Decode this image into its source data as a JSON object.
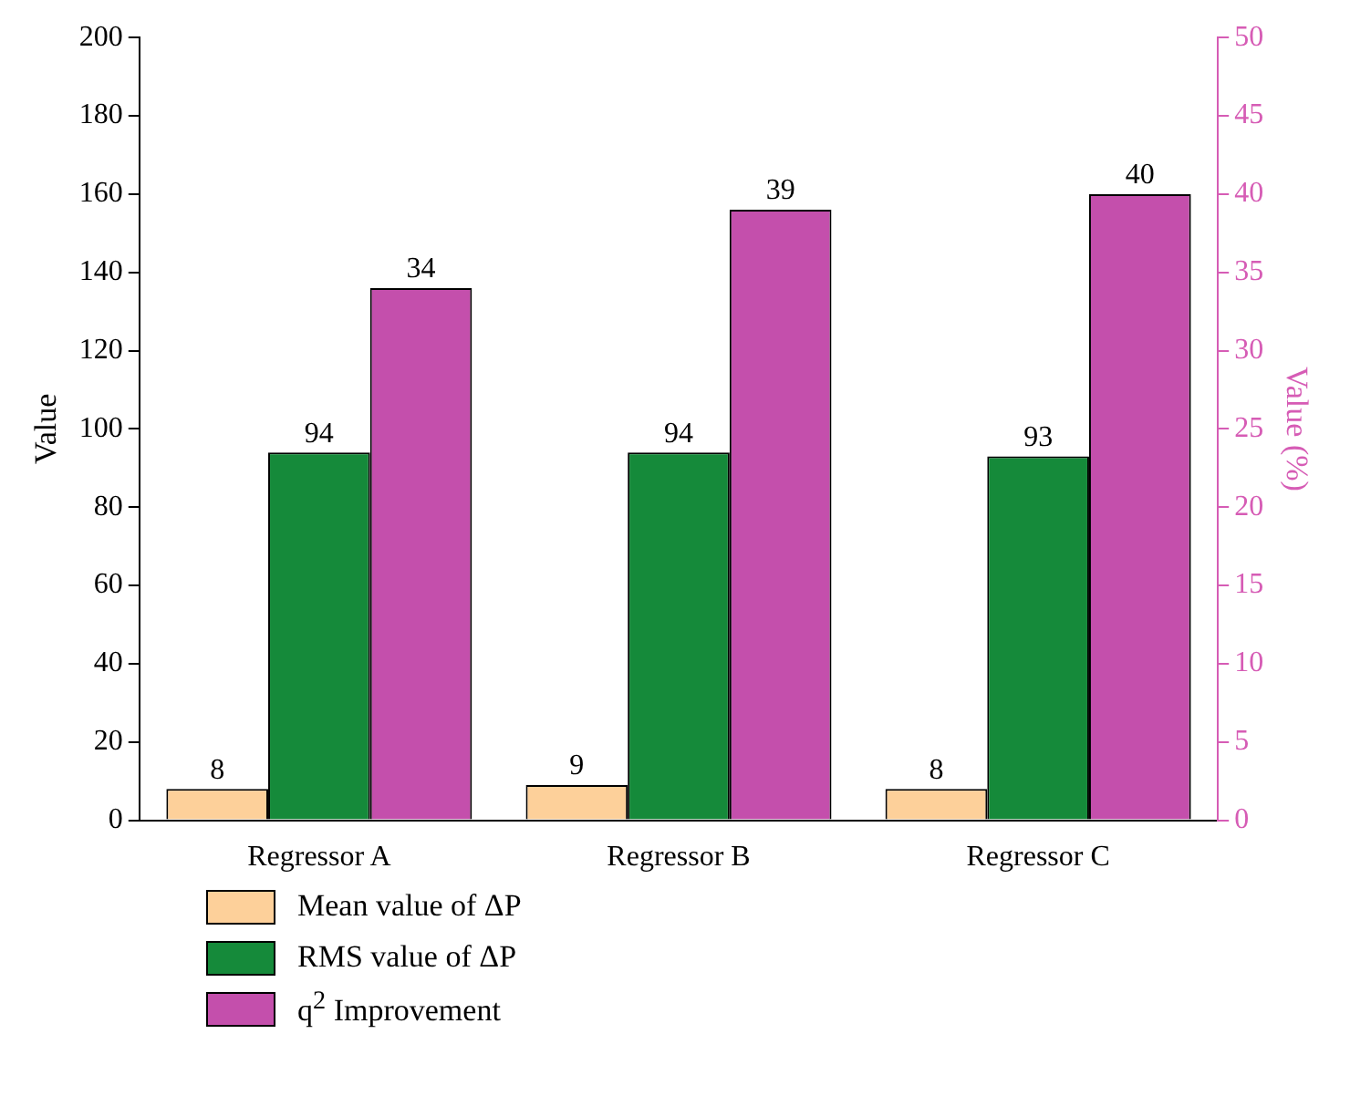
{
  "chart_data": {
    "type": "bar",
    "categories": [
      "Regressor A",
      "Regressor B",
      "Regressor C"
    ],
    "ylabel": "Value",
    "y2label": "Value (%)",
    "series": [
      {
        "name": "Mean value of ΔP",
        "color": "#fdd09a",
        "values": [
          8,
          9,
          8
        ]
      },
      {
        "name": "RMS value of ΔP",
        "color": "#158a3a",
        "values": [
          94,
          94,
          93
        ]
      },
      {
        "name": "q$^{2}$ Improvement",
        "color": "#c44fac",
        "values": [
          34,
          39,
          40
        ],
        "axis": "y2"
      }
    ],
    "ylim": [
      0,
      200
    ],
    "yticks": [
      0,
      20,
      40,
      60,
      80,
      100,
      120,
      140,
      160,
      180,
      200
    ],
    "y2lim": [
      0,
      50
    ],
    "y2ticks": [
      0,
      5,
      10,
      15,
      20,
      25,
      30,
      35,
      40,
      45,
      50
    ],
    "data_labels": true,
    "grid": false,
    "legend": "bottom"
  }
}
